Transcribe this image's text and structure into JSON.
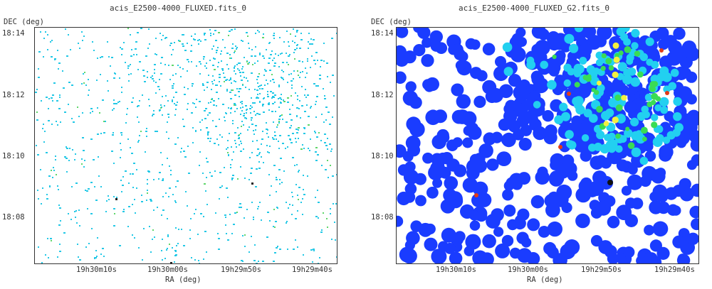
{
  "chart_data": [
    {
      "type": "heatmap",
      "title": "acis_E2500-4000_FLUXED.fits_0",
      "xlabel": "RA (deg)",
      "ylabel": "DEC (deg)",
      "x_ticks": [
        "19h30m10s",
        "19h30m00s",
        "19h29m50s",
        "19h29m40s"
      ],
      "y_ticks": [
        "18:14",
        "18:12",
        "18:10",
        "18:08"
      ],
      "grid": false,
      "style": "sparse scatter of single-pixel cyan photon counts with a few green pixels",
      "colors": {
        "base": "#22c8e6",
        "mid": "#5fd66a",
        "high": "#222222"
      }
    },
    {
      "type": "heatmap",
      "title": "acis_E2500-4000_FLUXED_G2.fits_0",
      "xlabel": "RA (deg)",
      "ylabel": "DEC (deg)",
      "x_ticks": [
        "19h30m10s",
        "19h30m00s",
        "19h29m50s",
        "19h29m40s"
      ],
      "y_ticks": [
        "18:14",
        "18:12",
        "18:10",
        "18:08"
      ],
      "grid": false,
      "style": "gaussian-smoothed intensity map, blue/cyan/green/yellow with red hot spots",
      "colors": {
        "low": "#1a3cff",
        "mid": "#22d0f0",
        "mid2": "#3adc54",
        "high": "#f4f040",
        "peak": "#e23a16"
      }
    }
  ]
}
